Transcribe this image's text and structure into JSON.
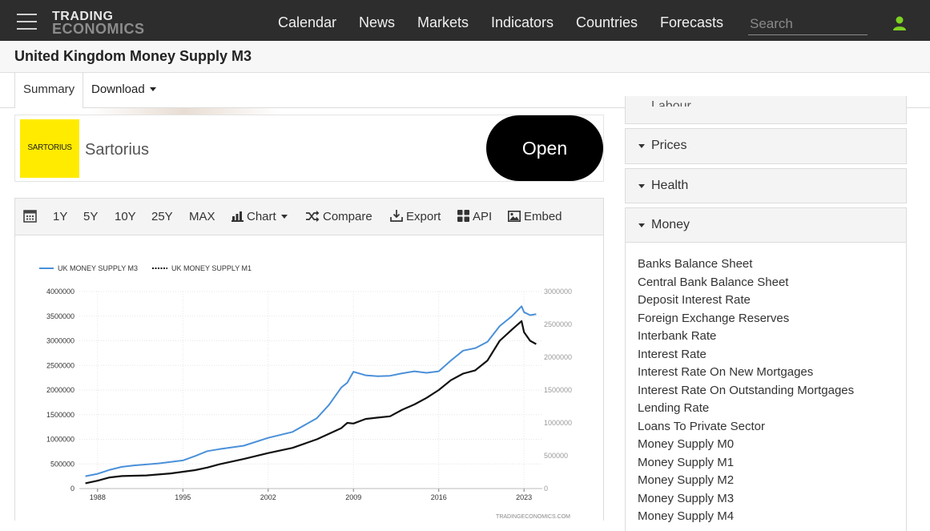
{
  "brand": {
    "line1": "TRADING",
    "line2": "ECONOMICS"
  },
  "nav": [
    "Calendar",
    "News",
    "Markets",
    "Indicators",
    "Countries",
    "Forecasts"
  ],
  "search": {
    "placeholder": "Search"
  },
  "page": {
    "title": "United Kingdom Money Supply M3"
  },
  "tabs": {
    "summary": "Summary",
    "download": "Download"
  },
  "ad": {
    "logo_text": "SARTORIUS",
    "name": "Sartorius",
    "button": "Open"
  },
  "toolbar": {
    "ranges": [
      "1Y",
      "5Y",
      "10Y",
      "25Y",
      "MAX"
    ],
    "chart": "Chart",
    "compare": "Compare",
    "export": "Export",
    "api": "API",
    "embed": "Embed"
  },
  "sidebar": {
    "cut_item": "Labour",
    "sections": [
      "Prices",
      "Health",
      "Money"
    ],
    "money_items": [
      "Banks Balance Sheet",
      "Central Bank Balance Sheet",
      "Deposit Interest Rate",
      "Foreign Exchange Reserves",
      "Interbank Rate",
      "Interest Rate",
      "Interest Rate On New Mortgages",
      "Interest Rate On Outstanding Mortgages",
      "Lending Rate",
      "Loans To Private Sector",
      "Money Supply M0",
      "Money Supply M1",
      "Money Supply M2",
      "Money Supply M3",
      "Money Supply M4"
    ]
  },
  "colors": {
    "m3": "#4a90d9",
    "m1": "#111111",
    "topbar": "#2d2d2d",
    "user": "#7ed321"
  },
  "chart_data": {
    "type": "line",
    "xlabel": "",
    "ylabel": "",
    "legend_position": "top-left",
    "x_ticks": [
      1988,
      1995,
      2002,
      2009,
      2016,
      2023
    ],
    "xlim": [
      1986.5,
      2024.5
    ],
    "y_left_ticks": [
      "0",
      "500000",
      "1000000",
      "1500000",
      "2000000",
      "2500000",
      "3000000",
      "3500000",
      "4000000"
    ],
    "ylim_left": [
      0,
      4000000
    ],
    "y_right_ticks": [
      "0",
      "500000",
      "1000000",
      "1500000",
      "2000000",
      "2500000",
      "3000000"
    ],
    "ylim_right": [
      0,
      3000000
    ],
    "watermark": "TRADINGECONOMICS.COM",
    "series": [
      {
        "name": "UK MONEY SUPPLY M3",
        "axis": "left",
        "x": [
          1987,
          1988,
          1989,
          1990,
          1991,
          1993,
          1995,
          1996,
          1997,
          1998,
          2000,
          2002,
          2004,
          2006,
          2007,
          2008,
          2008.5,
          2009,
          2010,
          2011,
          2012,
          2013,
          2014,
          2015,
          2016,
          2017,
          2018,
          2019,
          2020,
          2021,
          2022,
          2022.8,
          2023,
          2023.5,
          2024
        ],
        "y": [
          250000,
          300000,
          380000,
          440000,
          470000,
          510000,
          570000,
          660000,
          760000,
          800000,
          870000,
          1030000,
          1150000,
          1430000,
          1700000,
          2050000,
          2150000,
          2370000,
          2300000,
          2280000,
          2290000,
          2340000,
          2380000,
          2350000,
          2380000,
          2600000,
          2800000,
          2850000,
          2980000,
          3300000,
          3500000,
          3700000,
          3580000,
          3520000,
          3540000
        ]
      },
      {
        "name": "UK MONEY SUPPLY M1",
        "axis": "right",
        "x": [
          1987,
          1988,
          1989,
          1990,
          1992,
          1994,
          1996,
          1997,
          1998,
          2000,
          2002,
          2004,
          2006,
          2008,
          2008.5,
          2009,
          2010,
          2011,
          2012,
          2013,
          2014,
          2015,
          2016,
          2017,
          2018,
          2019,
          2020,
          2021,
          2022,
          2022.8,
          2023,
          2023.5,
          2024
        ],
        "y": [
          80000,
          120000,
          170000,
          190000,
          200000,
          230000,
          280000,
          320000,
          370000,
          450000,
          540000,
          620000,
          750000,
          920000,
          1000000,
          990000,
          1060000,
          1080000,
          1100000,
          1200000,
          1280000,
          1380000,
          1500000,
          1650000,
          1750000,
          1800000,
          1950000,
          2250000,
          2420000,
          2550000,
          2380000,
          2250000,
          2200000
        ]
      }
    ]
  }
}
